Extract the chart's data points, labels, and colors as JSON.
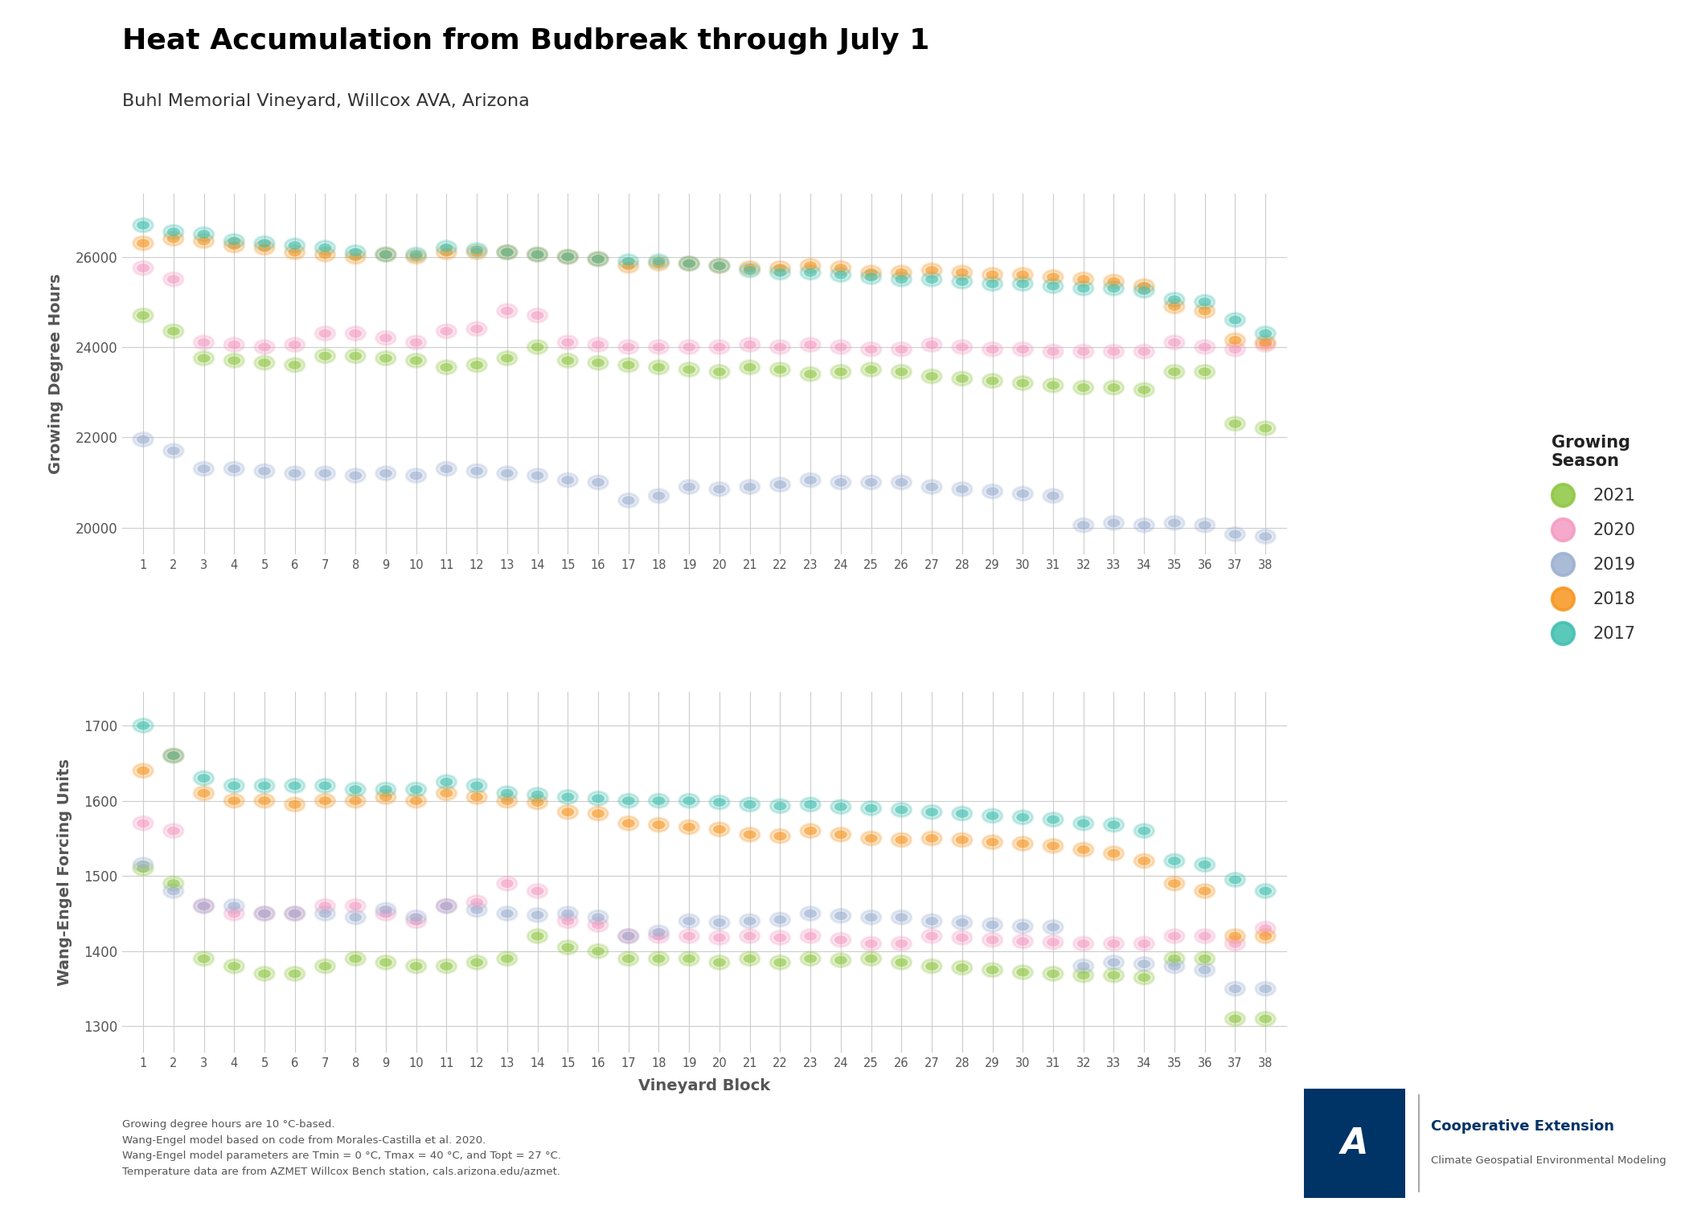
{
  "title": "Heat Accumulation from Budbreak through July 1",
  "subtitle": "Buhl Memorial Vineyard, Willcox AVA, Arizona",
  "xlabel": "Vineyard Block",
  "ylabel_top": "Growing Degree Hours",
  "ylabel_bottom": "Wang-Engel Forcing Units",
  "footnote": "Growing degree hours are 10 °C-based.\nWang-Engel model based on code from Morales-Castilla et al. 2020.\nWang-Engel model parameters are Tmin = 0 °C, Tmax = 40 °C, and Topt = 27 °C.\nTemperature data are from AZMET Willcox Bench station, cals.arizona.edu/azmet.",
  "seasons": [
    "2021",
    "2020",
    "2019",
    "2018",
    "2017"
  ],
  "colors": {
    "2021": "#8dc63f",
    "2020": "#f49ac2",
    "2019": "#9bafd1",
    "2018": "#f7941d",
    "2017": "#3dbfaf"
  },
  "blocks": [
    1,
    2,
    3,
    4,
    5,
    6,
    7,
    8,
    9,
    10,
    11,
    12,
    13,
    14,
    15,
    16,
    17,
    18,
    19,
    20,
    21,
    22,
    23,
    24,
    25,
    26,
    27,
    28,
    29,
    30,
    31,
    32,
    33,
    34,
    35,
    36,
    37,
    38
  ],
  "gdh": {
    "2021": [
      24700,
      24350,
      23750,
      23700,
      23650,
      23600,
      23800,
      23800,
      23750,
      23700,
      23550,
      23600,
      23750,
      24000,
      23700,
      23650,
      23600,
      23550,
      23500,
      23450,
      23550,
      23500,
      23400,
      23450,
      23500,
      23450,
      23350,
      23300,
      23250,
      23200,
      23150,
      23100,
      23100,
      23050,
      23450,
      23450,
      22300,
      22200
    ],
    "2020": [
      25750,
      25500,
      24100,
      24050,
      24000,
      24050,
      24300,
      24300,
      24200,
      24100,
      24350,
      24400,
      24800,
      24700,
      24100,
      24050,
      24000,
      24000,
      24000,
      24000,
      24050,
      24000,
      24050,
      24000,
      23950,
      23950,
      24050,
      24000,
      23950,
      23950,
      23900,
      23900,
      23900,
      23900,
      24100,
      24000,
      23950,
      24050
    ],
    "2019": [
      21950,
      21700,
      21300,
      21300,
      21250,
      21200,
      21200,
      21150,
      21200,
      21150,
      21300,
      21250,
      21200,
      21150,
      21050,
      21000,
      20600,
      20700,
      20900,
      20850,
      20900,
      20950,
      21050,
      21000,
      21000,
      21000,
      20900,
      20850,
      20800,
      20750,
      20700,
      20050,
      20100,
      20050,
      20100,
      20050,
      19850,
      19800
    ],
    "2018": [
      26300,
      26400,
      26350,
      26250,
      26200,
      26100,
      26050,
      26000,
      26050,
      26000,
      26100,
      26100,
      26100,
      26050,
      26000,
      25950,
      25800,
      25850,
      25850,
      25800,
      25750,
      25750,
      25800,
      25750,
      25650,
      25650,
      25700,
      25650,
      25600,
      25600,
      25550,
      25500,
      25450,
      25350,
      24900,
      24800,
      24150,
      24100
    ],
    "2017": [
      26700,
      26550,
      26500,
      26350,
      26300,
      26250,
      26200,
      26100,
      26050,
      26050,
      26200,
      26150,
      26100,
      26050,
      26000,
      25950,
      25900,
      25900,
      25850,
      25800,
      25700,
      25650,
      25650,
      25600,
      25550,
      25500,
      25500,
      25450,
      25400,
      25400,
      25350,
      25300,
      25300,
      25250,
      25050,
      25000,
      24600,
      24300
    ]
  },
  "wefu": {
    "2021": [
      1510,
      1490,
      1390,
      1380,
      1370,
      1370,
      1380,
      1390,
      1385,
      1380,
      1380,
      1385,
      1390,
      1420,
      1405,
      1400,
      1390,
      1390,
      1390,
      1385,
      1390,
      1385,
      1390,
      1388,
      1390,
      1385,
      1380,
      1378,
      1375,
      1372,
      1370,
      1368,
      1368,
      1365,
      1390,
      1390,
      1310,
      1310
    ],
    "2020": [
      1570,
      1560,
      1460,
      1450,
      1450,
      1450,
      1460,
      1460,
      1450,
      1440,
      1460,
      1465,
      1490,
      1480,
      1440,
      1435,
      1420,
      1420,
      1420,
      1418,
      1420,
      1418,
      1420,
      1415,
      1410,
      1410,
      1420,
      1418,
      1415,
      1413,
      1412,
      1410,
      1410,
      1410,
      1420,
      1420,
      1410,
      1430
    ],
    "2019": [
      1515,
      1480,
      1460,
      1460,
      1450,
      1450,
      1450,
      1445,
      1455,
      1445,
      1460,
      1455,
      1450,
      1448,
      1450,
      1445,
      1420,
      1425,
      1440,
      1438,
      1440,
      1442,
      1450,
      1447,
      1445,
      1445,
      1440,
      1438,
      1435,
      1433,
      1432,
      1380,
      1385,
      1383,
      1380,
      1375,
      1350,
      1350
    ],
    "2018": [
      1640,
      1660,
      1610,
      1600,
      1600,
      1595,
      1600,
      1600,
      1605,
      1600,
      1610,
      1605,
      1600,
      1598,
      1585,
      1583,
      1570,
      1568,
      1565,
      1562,
      1555,
      1553,
      1560,
      1555,
      1550,
      1548,
      1550,
      1548,
      1545,
      1543,
      1540,
      1535,
      1530,
      1520,
      1490,
      1480,
      1420,
      1420
    ],
    "2017": [
      1700,
      1660,
      1630,
      1620,
      1620,
      1620,
      1620,
      1615,
      1615,
      1615,
      1625,
      1620,
      1610,
      1608,
      1605,
      1603,
      1600,
      1600,
      1600,
      1598,
      1595,
      1593,
      1595,
      1592,
      1590,
      1588,
      1585,
      1583,
      1580,
      1578,
      1575,
      1570,
      1568,
      1560,
      1520,
      1515,
      1495,
      1480
    ]
  },
  "legend_title": "Growing\nSeason",
  "background_color": "#ffffff",
  "gdh_ylim": [
    19400,
    27400
  ],
  "gdh_yticks": [
    20000,
    22000,
    24000,
    26000
  ],
  "wefu_ylim": [
    1265,
    1745
  ],
  "wefu_yticks": [
    1300,
    1400,
    1500,
    1600,
    1700
  ]
}
